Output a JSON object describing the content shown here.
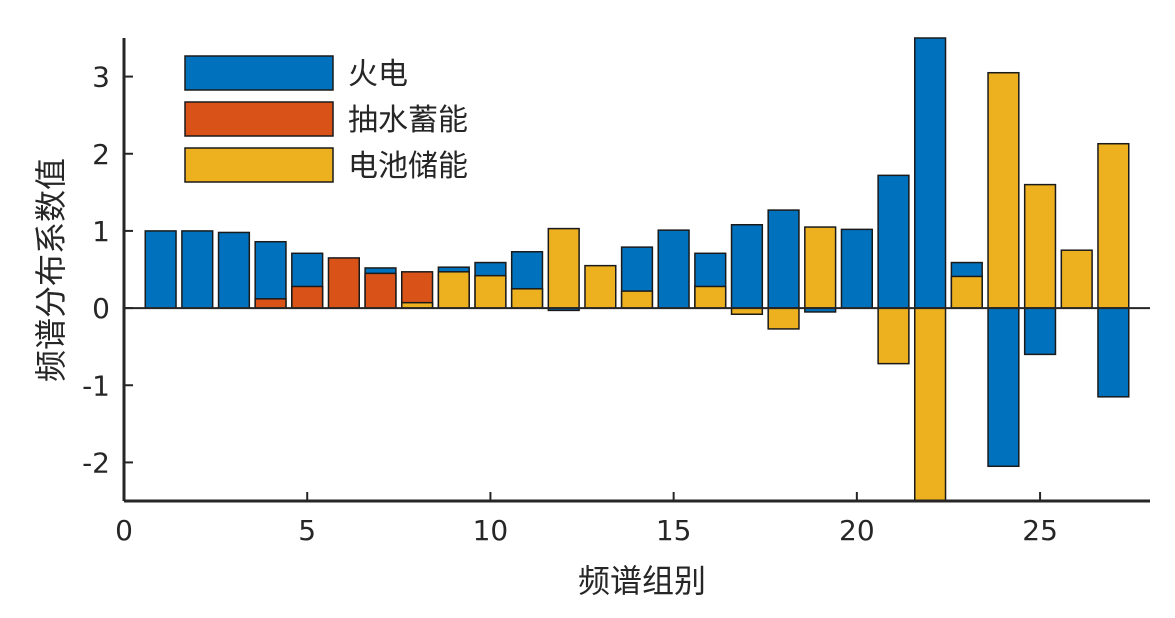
{
  "chart_data": {
    "type": "bar",
    "xlabel": "频谱组别",
    "ylabel": "频谱分布系数值",
    "xlim": [
      0,
      28
    ],
    "ylim": [
      -2.5,
      3.5
    ],
    "xticks": [
      0,
      5,
      10,
      15,
      20,
      25
    ],
    "yticks": [
      -2,
      -1,
      0,
      1,
      2,
      3
    ],
    "legend_position": "top-left",
    "series": [
      {
        "name": "火电",
        "color": "#0072BD"
      },
      {
        "name": "抽水蓄能",
        "color": "#D95319"
      },
      {
        "name": "电池储能",
        "color": "#EDB120"
      }
    ],
    "bars": [
      {
        "x": 1,
        "series": 0,
        "overlay": null,
        "value": 1.0,
        "overlay_value": null
      },
      {
        "x": 2,
        "series": 0,
        "overlay": null,
        "value": 1.0,
        "overlay_value": null
      },
      {
        "x": 3,
        "series": 0,
        "overlay": null,
        "value": 0.98,
        "overlay_value": null
      },
      {
        "x": 4,
        "series": 0,
        "overlay": 1,
        "value": 0.86,
        "overlay_value": 0.12
      },
      {
        "x": 5,
        "series": 0,
        "overlay": 1,
        "value": 0.71,
        "overlay_value": 0.28
      },
      {
        "x": 6,
        "series": 1,
        "overlay": null,
        "value": 0.65,
        "overlay_value": null
      },
      {
        "x": 7,
        "series": 0,
        "overlay": 1,
        "value": 0.52,
        "overlay_value": 0.45
      },
      {
        "x": 8,
        "series": 1,
        "overlay": 2,
        "value": 0.47,
        "overlay_value": 0.07
      },
      {
        "x": 9,
        "series": 0,
        "overlay": 2,
        "value": 0.53,
        "overlay_value": 0.47
      },
      {
        "x": 10,
        "series": 0,
        "overlay": 2,
        "value": 0.59,
        "overlay_value": 0.42
      },
      {
        "x": 11,
        "series": 0,
        "overlay": 2,
        "value": 0.73,
        "overlay_value": 0.25
      },
      {
        "x": 12,
        "series": 2,
        "overlay": 0,
        "value": 1.03,
        "overlay_value": -0.03
      },
      {
        "x": 13,
        "series": 2,
        "overlay": null,
        "value": 0.55,
        "overlay_value": null
      },
      {
        "x": 14,
        "series": 0,
        "overlay": 2,
        "value": 0.79,
        "overlay_value": 0.22
      },
      {
        "x": 15,
        "series": 0,
        "overlay": null,
        "value": 1.01,
        "overlay_value": null
      },
      {
        "x": 16,
        "series": 0,
        "overlay": 2,
        "value": 0.71,
        "overlay_value": 0.28
      },
      {
        "x": 17,
        "series": 0,
        "overlay": 2,
        "value": 1.08,
        "overlay_value": -0.08
      },
      {
        "x": 18,
        "series": 0,
        "overlay": 2,
        "value": 1.27,
        "overlay_value": -0.27
      },
      {
        "x": 19,
        "series": 2,
        "overlay": 0,
        "value": 1.05,
        "overlay_value": -0.05
      },
      {
        "x": 20,
        "series": 0,
        "overlay": null,
        "value": 1.02,
        "overlay_value": null
      },
      {
        "x": 21,
        "series": 0,
        "overlay": 2,
        "value": 1.72,
        "overlay_value": -0.72
      },
      {
        "x": 22,
        "series": 0,
        "overlay": 2,
        "value": 3.5,
        "overlay_value": -2.5
      },
      {
        "x": 23,
        "series": 0,
        "overlay": 2,
        "value": 0.59,
        "overlay_value": 0.41
      },
      {
        "x": 24,
        "series": 2,
        "overlay": 0,
        "value": 3.05,
        "overlay_value": -2.05
      },
      {
        "x": 25,
        "series": 2,
        "overlay": 0,
        "value": 1.6,
        "overlay_value": -0.6
      },
      {
        "x": 26,
        "series": 2,
        "overlay": null,
        "value": 0.75,
        "overlay_value": null
      },
      {
        "x": 27,
        "series": 2,
        "overlay": 0,
        "value": 2.13,
        "overlay_value": -1.15
      }
    ]
  }
}
